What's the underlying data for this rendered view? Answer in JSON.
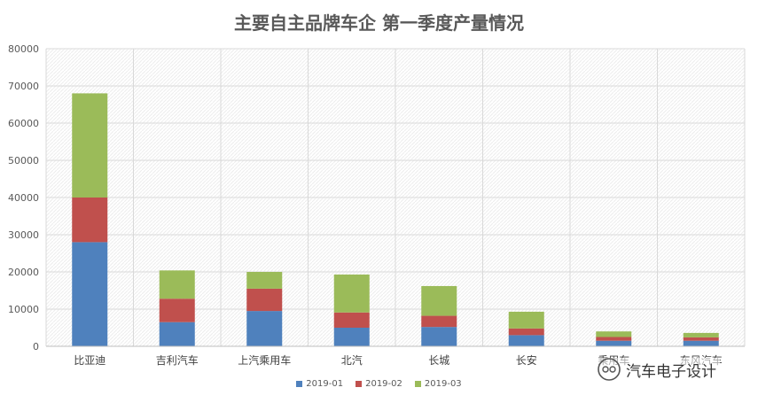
{
  "chart_data": {
    "type": "bar",
    "stacked": true,
    "title": "主要自主品牌车企 第一季度产量情况",
    "categories": [
      "比亚迪",
      "吉利汽车",
      "上汽乘用车",
      "北汽",
      "长城",
      "长安",
      "乘用车",
      "东风汽车"
    ],
    "series": [
      {
        "name": "2019-01",
        "color": "#4f81bd",
        "values": [
          28000,
          6500,
          9500,
          5000,
          5200,
          3000,
          1500,
          1500
        ]
      },
      {
        "name": "2019-02",
        "color": "#c0504d",
        "values": [
          12000,
          6300,
          6000,
          4100,
          3000,
          1800,
          1000,
          900
        ]
      },
      {
        "name": "2019-03",
        "color": "#9bbb59",
        "values": [
          28000,
          7600,
          4500,
          10200,
          8000,
          4500,
          1500,
          1200
        ]
      }
    ],
    "ylim": [
      0,
      80000
    ],
    "yticks": [
      0,
      10000,
      20000,
      30000,
      40000,
      50000,
      60000,
      70000,
      80000
    ],
    "grid": true,
    "legend_position": "bottom"
  },
  "watermark": {
    "text": "汽车电子设计",
    "logo_icon": "wechat-logo-icon"
  }
}
